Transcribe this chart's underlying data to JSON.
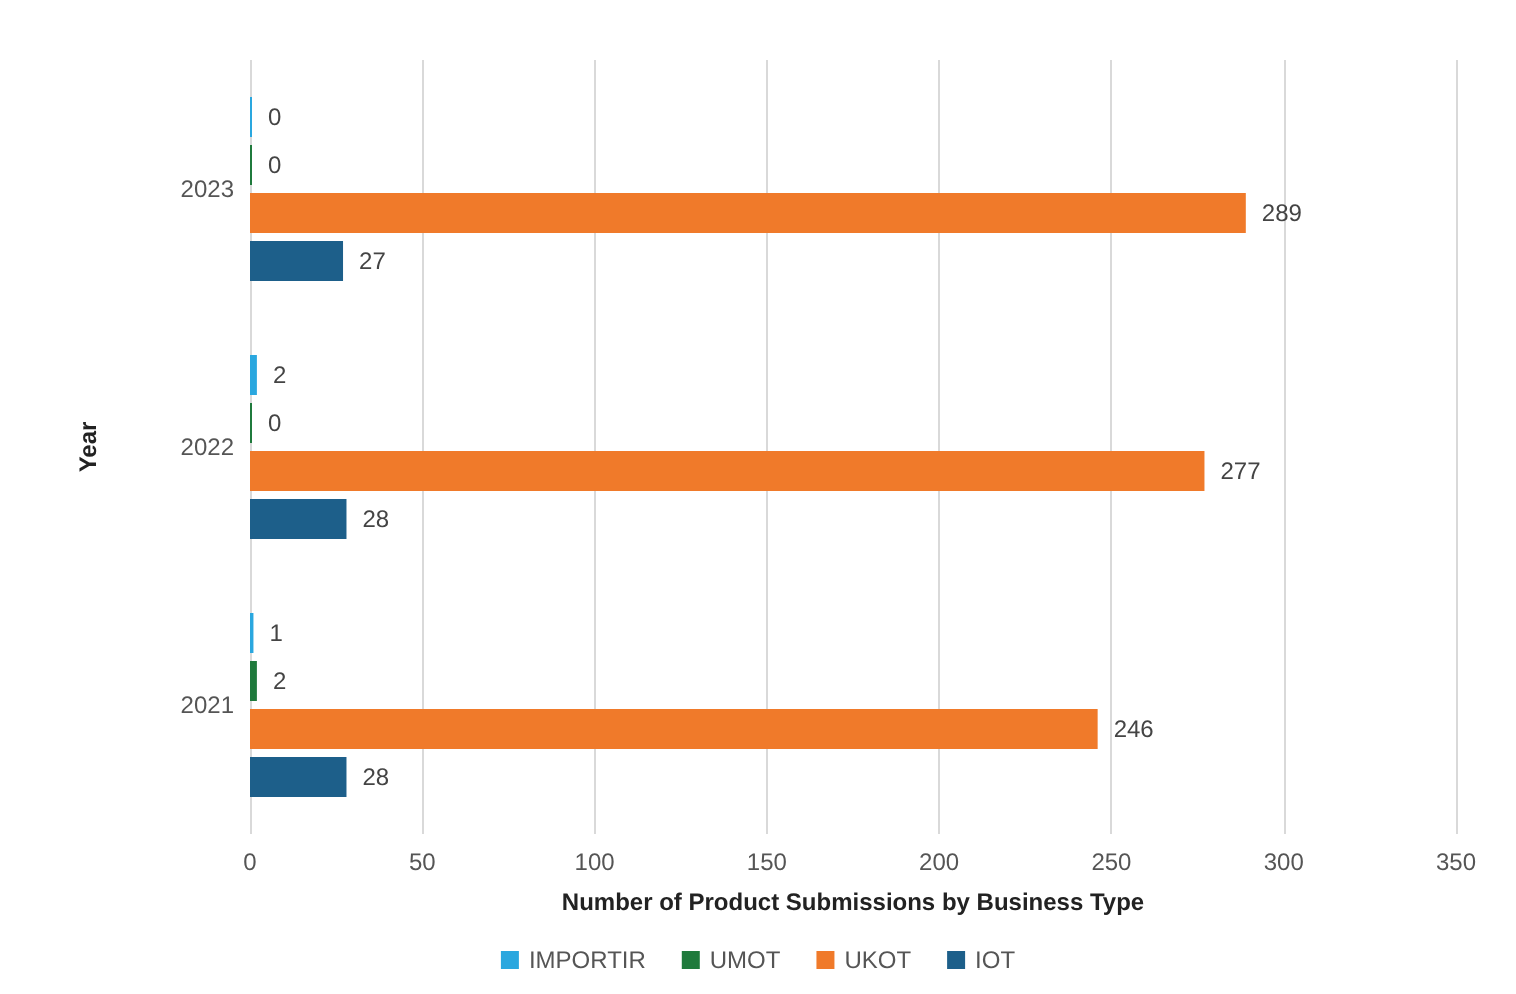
{
  "chart_data": {
    "type": "bar",
    "orientation": "horizontal",
    "xlabel": "Number of Product Submissions by Business Type",
    "ylabel": "Year",
    "categories": [
      "2023",
      "2022",
      "2021"
    ],
    "series": [
      {
        "name": "IMPORTIR",
        "color": "#2aa7df",
        "values": [
          0,
          2,
          1
        ]
      },
      {
        "name": "UMOT",
        "color": "#1f7a3c",
        "values": [
          0,
          0,
          2
        ]
      },
      {
        "name": "UKOT",
        "color": "#f07a2a",
        "values": [
          289,
          277,
          246
        ]
      },
      {
        "name": "IOT",
        "color": "#1d5f8a",
        "values": [
          27,
          28,
          28
        ]
      }
    ],
    "xlim": [
      0,
      350
    ],
    "xticks": [
      0,
      50,
      100,
      150,
      200,
      250,
      300,
      350
    ],
    "grid": "x",
    "legend": "bottom",
    "data_labels": true
  }
}
